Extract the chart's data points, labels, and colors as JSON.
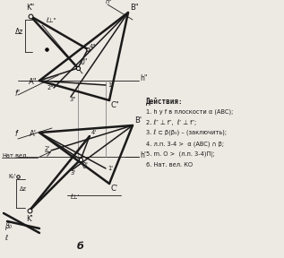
{
  "background_color": "#ede9e3",
  "text_color": "#1a1a1a",
  "figure_label": "б",
  "actions_title": "Действия:",
  "actions": [
    "1. h у f в плоскости α (ABC);",
    "2. ℓ″ ⊥ f″,  ℓ′ ⊥ f″;",
    "3. ℓ ⊂ β(β₀) – (заключить);",
    "4. л.п. 3-4 >  α (ABC) ∩ β;",
    "5. m. O >  (л.п. 3-4)Π|;",
    "6. Нат. вел. КО"
  ],
  "lw_thin": 0.6,
  "lw_medium": 1.1,
  "lw_thick": 1.8
}
